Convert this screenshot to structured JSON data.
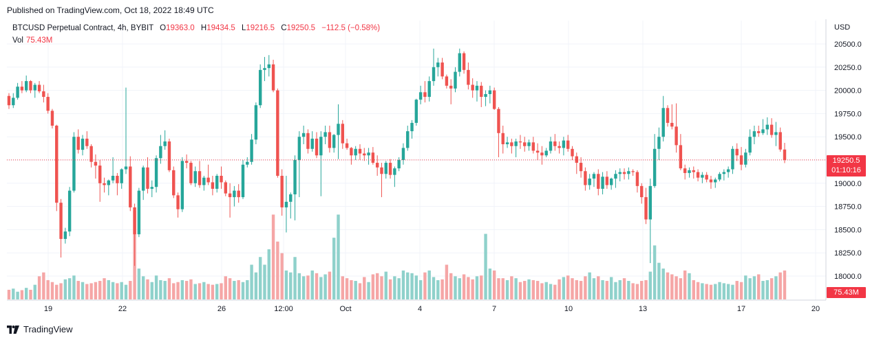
{
  "header": {
    "published": "Published on TradingView.com, Oct 18, 2022 18:49 UTC"
  },
  "legend": {
    "symbol": "BTCUSD Perpetual Contract, 4h, BYBIT",
    "open_label": "O",
    "open": "19363.0",
    "high_label": "H",
    "high": "19434.5",
    "low_label": "L",
    "low": "19216.5",
    "close_label": "C",
    "close": "19250.5",
    "change": "−112.5 (−0.58%)",
    "vol_label": "Vol",
    "vol": "75.43M"
  },
  "axis": {
    "currency": "USD"
  },
  "price_tag": {
    "price": "19250.5",
    "countdown": "01:10:16"
  },
  "volume_tag": "75.43M",
  "footer": {
    "brand": "TradingView"
  },
  "colors": {
    "up": "#26a69a",
    "down": "#ef5350",
    "up_vol": "#8fd1cb",
    "down_vol": "#f5a6a6",
    "last_price": "#f23645"
  },
  "chart_data": {
    "type": "candlestick",
    "interval": "4h",
    "y_ticks": [
      20500,
      20250,
      20000,
      19750,
      19500,
      19250,
      19000,
      18750,
      18500,
      18250,
      18000
    ],
    "y_tick_labels": [
      "20500.0",
      "20250.0",
      "20000.0",
      "19750.0",
      "19500.0",
      "19250.0",
      "19000.0",
      "18750.0",
      "18500.0",
      "18250.0",
      "18000.0"
    ],
    "ylim": [
      17860,
      20690
    ],
    "x_tick_labels": [
      "19",
      "22",
      "26",
      "12:00",
      "Oct",
      "4",
      "7",
      "10",
      "13",
      "17",
      "20"
    ],
    "last_price": 19250.5,
    "grid": true,
    "candles": [
      [
        19940,
        19970,
        19800,
        19840
      ],
      [
        19840,
        19970,
        19810,
        19920
      ],
      [
        19920,
        20080,
        19900,
        20040
      ],
      [
        20040,
        20100,
        19970,
        20000
      ],
      [
        20000,
        20160,
        19980,
        20100
      ],
      [
        20100,
        20110,
        19970,
        20000
      ],
      [
        20000,
        20080,
        19920,
        20060
      ],
      [
        20060,
        20100,
        19970,
        19990
      ],
      [
        19990,
        20060,
        19870,
        19930
      ],
      [
        19930,
        19970,
        19750,
        19780
      ],
      [
        19780,
        19800,
        19590,
        19620
      ],
      [
        19620,
        19630,
        18700,
        18790
      ],
      [
        18790,
        18830,
        18200,
        18400
      ],
      [
        18400,
        18520,
        18350,
        18480
      ],
      [
        18480,
        18960,
        18430,
        18920
      ],
      [
        18920,
        19550,
        18900,
        19500
      ],
      [
        19500,
        19580,
        19320,
        19360
      ],
      [
        19360,
        19520,
        19300,
        19480
      ],
      [
        19480,
        19560,
        19370,
        19400
      ],
      [
        19400,
        19420,
        19170,
        19230
      ],
      [
        19230,
        19310,
        19050,
        19190
      ],
      [
        19190,
        19250,
        18800,
        19000
      ],
      [
        19000,
        19060,
        18900,
        18980
      ],
      [
        18980,
        19040,
        18870,
        19030
      ],
      [
        19030,
        19280,
        19000,
        19080
      ],
      [
        19080,
        19110,
        18870,
        19000
      ],
      [
        19000,
        19160,
        18940,
        19150
      ],
      [
        19150,
        20030,
        19100,
        19180
      ],
      [
        19180,
        19290,
        18700,
        18740
      ],
      [
        18740,
        18780,
        18110,
        18450
      ],
      [
        18450,
        18950,
        18420,
        18920
      ],
      [
        18920,
        19190,
        18820,
        19170
      ],
      [
        19170,
        19280,
        18890,
        18940
      ],
      [
        18940,
        19030,
        18850,
        18960
      ],
      [
        18960,
        19300,
        18900,
        19270
      ],
      [
        19270,
        19520,
        19210,
        19400
      ],
      [
        19400,
        19570,
        19360,
        19450
      ],
      [
        19450,
        19480,
        19120,
        19140
      ],
      [
        19140,
        19180,
        18840,
        18870
      ],
      [
        18870,
        18900,
        18630,
        18720
      ],
      [
        18720,
        19280,
        18690,
        19240
      ],
      [
        19240,
        19310,
        19160,
        19220
      ],
      [
        19220,
        19240,
        18980,
        19000
      ],
      [
        19000,
        19180,
        18960,
        19130
      ],
      [
        19130,
        19240,
        18950,
        18980
      ],
      [
        18980,
        19080,
        18920,
        19060
      ],
      [
        19060,
        19200,
        18980,
        19010
      ],
      [
        19010,
        19080,
        18870,
        18940
      ],
      [
        18940,
        19100,
        18900,
        19080
      ],
      [
        19080,
        19180,
        18940,
        19010
      ],
      [
        19010,
        19030,
        18860,
        18890
      ],
      [
        18890,
        19000,
        18630,
        18850
      ],
      [
        18850,
        18970,
        18750,
        18920
      ],
      [
        18920,
        18990,
        18790,
        18850
      ],
      [
        18850,
        19250,
        18830,
        19200
      ],
      [
        19200,
        19280,
        19170,
        19230
      ],
      [
        19230,
        19530,
        19200,
        19470
      ],
      [
        19470,
        19870,
        19420,
        19840
      ],
      [
        19840,
        20280,
        19810,
        20220
      ],
      [
        20220,
        20360,
        20100,
        20240
      ],
      [
        20240,
        20380,
        20150,
        20280
      ],
      [
        20280,
        20330,
        19980,
        20000
      ],
      [
        20000,
        20020,
        19060,
        19080
      ],
      [
        19080,
        19150,
        18650,
        18740
      ],
      [
        18740,
        19080,
        18470,
        18800
      ],
      [
        18800,
        18900,
        18620,
        18880
      ],
      [
        18880,
        19300,
        18600,
        19250
      ],
      [
        19250,
        19560,
        18850,
        19500
      ],
      [
        19500,
        19620,
        19420,
        19540
      ],
      [
        19540,
        19580,
        19320,
        19370
      ],
      [
        19370,
        19560,
        19340,
        19480
      ],
      [
        19480,
        19550,
        19270,
        19300
      ],
      [
        19300,
        19560,
        18860,
        19500
      ],
      [
        19500,
        19620,
        19420,
        19550
      ],
      [
        19550,
        19620,
        19330,
        19380
      ],
      [
        19380,
        19530,
        19330,
        19520
      ],
      [
        19520,
        19850,
        19260,
        19640
      ],
      [
        19640,
        19680,
        19370,
        19430
      ],
      [
        19430,
        19480,
        19360,
        19380
      ],
      [
        19380,
        19390,
        19200,
        19300
      ],
      [
        19300,
        19400,
        19250,
        19370
      ],
      [
        19370,
        19420,
        19250,
        19320
      ],
      [
        19320,
        19380,
        19240,
        19300
      ],
      [
        19300,
        19380,
        19200,
        19330
      ],
      [
        19330,
        19390,
        19200,
        19220
      ],
      [
        19220,
        19300,
        19080,
        19170
      ],
      [
        19170,
        19220,
        18850,
        19100
      ],
      [
        19100,
        19240,
        19050,
        19220
      ],
      [
        19220,
        19260,
        19050,
        19090
      ],
      [
        19090,
        19180,
        18960,
        19160
      ],
      [
        19160,
        19280,
        19130,
        19250
      ],
      [
        19250,
        19430,
        19200,
        19380
      ],
      [
        19380,
        19620,
        19350,
        19560
      ],
      [
        19560,
        19680,
        19480,
        19650
      ],
      [
        19650,
        19910,
        19620,
        19900
      ],
      [
        19900,
        20050,
        19850,
        19980
      ],
      [
        19980,
        20100,
        19870,
        19930
      ],
      [
        19930,
        20150,
        19880,
        20100
      ],
      [
        20100,
        20450,
        20050,
        20250
      ],
      [
        20250,
        20350,
        20150,
        20300
      ],
      [
        20300,
        20350,
        20120,
        20150
      ],
      [
        20150,
        20170,
        20020,
        20050
      ],
      [
        20050,
        20120,
        19850,
        20020
      ],
      [
        20020,
        20250,
        19980,
        20200
      ],
      [
        20200,
        20450,
        20150,
        20400
      ],
      [
        20400,
        20420,
        20180,
        20220
      ],
      [
        20220,
        20300,
        20010,
        20060
      ],
      [
        20060,
        20130,
        19920,
        20000
      ],
      [
        20000,
        20100,
        19880,
        20050
      ],
      [
        20050,
        20090,
        19820,
        19930
      ],
      [
        19930,
        20000,
        19830,
        19960
      ],
      [
        19960,
        20050,
        19860,
        20000
      ],
      [
        20000,
        20030,
        19790,
        19800
      ],
      [
        19800,
        19820,
        19280,
        19540
      ],
      [
        19540,
        19620,
        19320,
        19420
      ],
      [
        19420,
        19500,
        19380,
        19440
      ],
      [
        19440,
        19480,
        19320,
        19400
      ],
      [
        19400,
        19480,
        19280,
        19450
      ],
      [
        19450,
        19520,
        19370,
        19440
      ],
      [
        19440,
        19500,
        19340,
        19400
      ],
      [
        19400,
        19470,
        19350,
        19440
      ],
      [
        19440,
        19500,
        19320,
        19350
      ],
      [
        19350,
        19430,
        19250,
        19330
      ],
      [
        19330,
        19400,
        19200,
        19300
      ],
      [
        19300,
        19380,
        19280,
        19350
      ],
      [
        19350,
        19500,
        19320,
        19450
      ],
      [
        19450,
        19530,
        19350,
        19400
      ],
      [
        19400,
        19450,
        19320,
        19380
      ],
      [
        19380,
        19500,
        19300,
        19460
      ],
      [
        19460,
        19520,
        19340,
        19370
      ],
      [
        19370,
        19400,
        19250,
        19290
      ],
      [
        19290,
        19330,
        19100,
        19220
      ],
      [
        19220,
        19280,
        19060,
        19130
      ],
      [
        19130,
        19170,
        18920,
        18980
      ],
      [
        18980,
        19100,
        18930,
        19050
      ],
      [
        19050,
        19120,
        18960,
        19100
      ],
      [
        19100,
        19150,
        18870,
        18940
      ],
      [
        18940,
        19120,
        18880,
        19070
      ],
      [
        19070,
        19130,
        18940,
        18980
      ],
      [
        18980,
        19060,
        18930,
        19050
      ],
      [
        19050,
        19140,
        18950,
        19100
      ],
      [
        19100,
        19160,
        19020,
        19120
      ],
      [
        19120,
        19160,
        19040,
        19100
      ],
      [
        19100,
        19170,
        19040,
        19130
      ],
      [
        19130,
        19150,
        19080,
        19120
      ],
      [
        19120,
        19140,
        18900,
        18970
      ],
      [
        18970,
        19000,
        18780,
        18850
      ],
      [
        18850,
        18950,
        18560,
        18610
      ],
      [
        18610,
        19050,
        18140,
        18970
      ],
      [
        18970,
        19530,
        18950,
        19370
      ],
      [
        19370,
        19600,
        19250,
        19500
      ],
      [
        19500,
        19940,
        19450,
        19810
      ],
      [
        19810,
        19840,
        19610,
        19650
      ],
      [
        19650,
        19850,
        19580,
        19610
      ],
      [
        19610,
        19860,
        19330,
        19410
      ],
      [
        19410,
        19530,
        19140,
        19160
      ],
      [
        19160,
        19200,
        19040,
        19110
      ],
      [
        19110,
        19170,
        19060,
        19140
      ],
      [
        19140,
        19180,
        19050,
        19120
      ],
      [
        19120,
        19150,
        19020,
        19060
      ],
      [
        19060,
        19120,
        19000,
        19090
      ],
      [
        19090,
        19120,
        19010,
        19040
      ],
      [
        19040,
        19080,
        18940,
        19010
      ],
      [
        19010,
        19060,
        18950,
        19040
      ],
      [
        19040,
        19120,
        19020,
        19100
      ],
      [
        19100,
        19150,
        19030,
        19120
      ],
      [
        19120,
        19180,
        19060,
        19150
      ],
      [
        19150,
        19400,
        19100,
        19370
      ],
      [
        19370,
        19430,
        19240,
        19300
      ],
      [
        19300,
        19390,
        19140,
        19200
      ],
      [
        19200,
        19370,
        19170,
        19330
      ],
      [
        19330,
        19580,
        19300,
        19500
      ],
      [
        19500,
        19620,
        19420,
        19560
      ],
      [
        19560,
        19620,
        19500,
        19540
      ],
      [
        19540,
        19690,
        19520,
        19580
      ],
      [
        19580,
        19710,
        19520,
        19630
      ],
      [
        19630,
        19700,
        19490,
        19520
      ],
      [
        19520,
        19660,
        19400,
        19550
      ],
      [
        19550,
        19600,
        19340,
        19363
      ],
      [
        19363,
        19434.5,
        19216.5,
        19250.5
      ]
    ],
    "volume": {
      "values_m": [
        25,
        28,
        20,
        24,
        30,
        25,
        38,
        60,
        70,
        50,
        45,
        38,
        42,
        52,
        55,
        62,
        48,
        45,
        40,
        42,
        45,
        48,
        55,
        50,
        45,
        42,
        45,
        38,
        48,
        230,
        80,
        60,
        52,
        45,
        62,
        50,
        48,
        55,
        42,
        45,
        50,
        48,
        52,
        40,
        42,
        45,
        40,
        38,
        40,
        42,
        60,
        55,
        48,
        50,
        45,
        50,
        90,
        70,
        110,
        90,
        130,
        220,
        150,
        120,
        75,
        70,
        110,
        68,
        60,
        62,
        75,
        68,
        58,
        65,
        72,
        160,
        220,
        60,
        55,
        50,
        48,
        42,
        58,
        45,
        65,
        68,
        60,
        72,
        52,
        60,
        55,
        75,
        70,
        68,
        62,
        50,
        70,
        75,
        58,
        50,
        52,
        90,
        68,
        60,
        55,
        65,
        58,
        52,
        60,
        62,
        170,
        80,
        75,
        55,
        55,
        50,
        60,
        55,
        45,
        48,
        52,
        50,
        48,
        42,
        45,
        40,
        38,
        52,
        58,
        62,
        55,
        50,
        48,
        60,
        70,
        55,
        60,
        50,
        48,
        58,
        45,
        50,
        55,
        48,
        42,
        40,
        48,
        50,
        72,
        140,
        95,
        80,
        70,
        65,
        60,
        55,
        75,
        68,
        50,
        45,
        42,
        40,
        38,
        40,
        45,
        42,
        40,
        38,
        48,
        45,
        62,
        55,
        60,
        65,
        48,
        50,
        55,
        60,
        70,
        75
      ],
      "ylim_m": [
        0,
        260
      ],
      "last": "75.43M"
    }
  }
}
